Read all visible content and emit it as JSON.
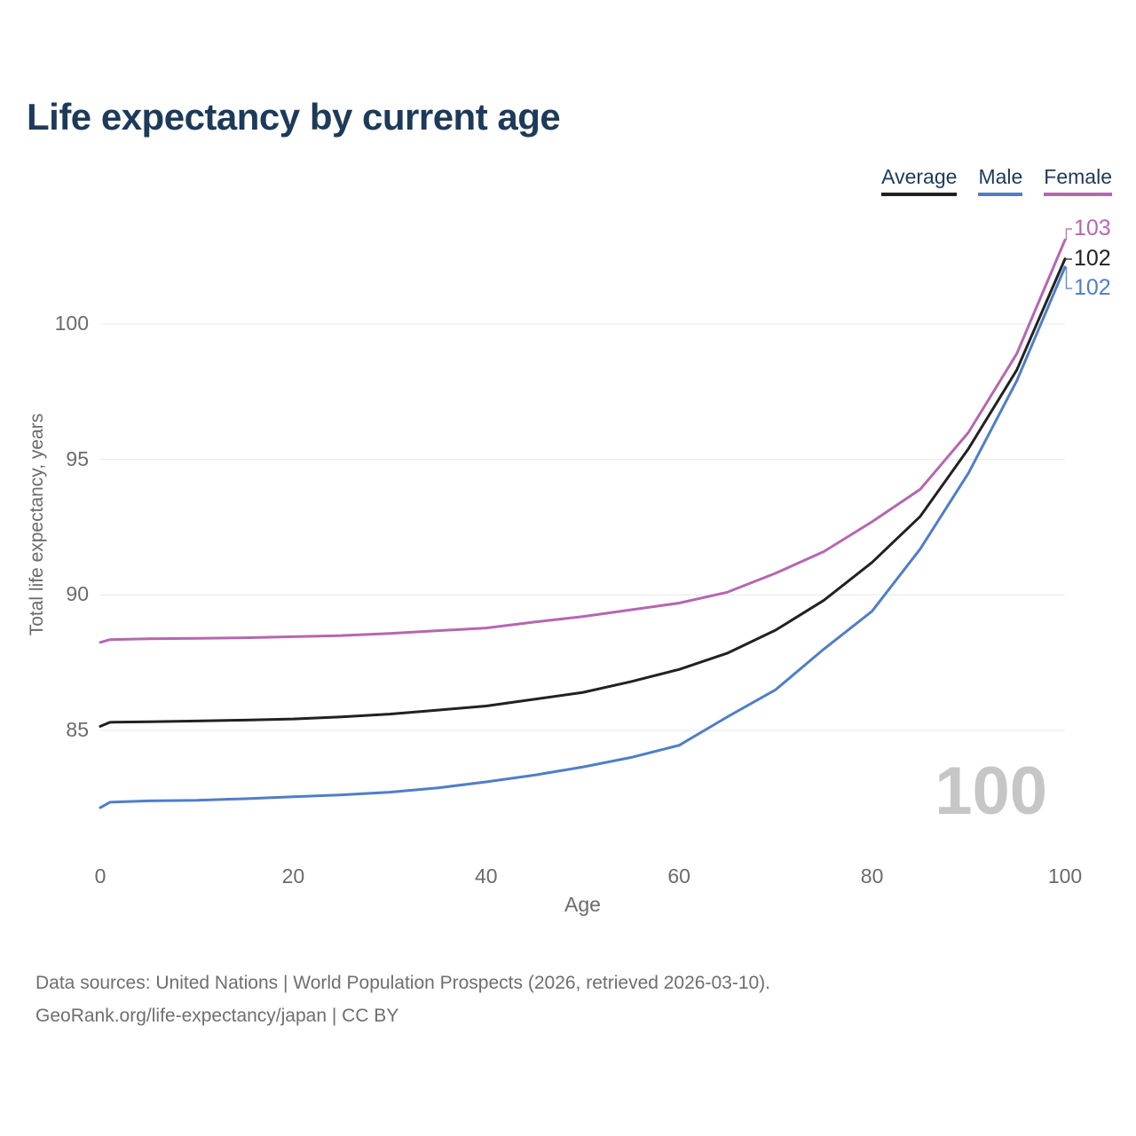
{
  "title": "Life expectancy by current age",
  "legend": {
    "items": [
      {
        "label": "Average",
        "color": "#212121"
      },
      {
        "label": "Male",
        "color": "#4f7ec8"
      },
      {
        "label": "Female",
        "color": "#b567b0"
      }
    ]
  },
  "axes": {
    "x_label": "Age",
    "y_label": "Total life expectancy, years",
    "x_ticks": [
      0,
      20,
      40,
      60,
      80,
      100
    ],
    "y_ticks": [
      85,
      90,
      95,
      100
    ]
  },
  "watermark": "100",
  "footer": {
    "sources_line": "Data sources: United Nations | World Population Prospects (2026, retrieved 2026-03-10).",
    "attribution_line": "GeoRank.org/life-expectancy/japan | CC BY"
  },
  "chart_data": {
    "type": "line",
    "title": "Life expectancy by current age",
    "xlabel": "Age",
    "ylabel": "Total life expectancy, years",
    "xlim": [
      0,
      100
    ],
    "ylim": [
      81.5,
      104.1
    ],
    "grid": true,
    "legend_position": "top-right",
    "x": [
      0,
      1,
      5,
      10,
      15,
      20,
      25,
      30,
      35,
      40,
      45,
      50,
      55,
      60,
      65,
      70,
      75,
      80,
      85,
      90,
      95,
      100
    ],
    "series": [
      {
        "name": "Average",
        "color": "#212121",
        "end_label": "102",
        "values": [
          85.15,
          85.3,
          85.32,
          85.35,
          85.38,
          85.42,
          85.5,
          85.6,
          85.75,
          85.9,
          86.15,
          86.4,
          86.8,
          87.25,
          87.85,
          88.7,
          89.8,
          91.2,
          92.9,
          95.4,
          98.3,
          102.4
        ]
      },
      {
        "name": "Male",
        "color": "#4f7ec8",
        "end_label": "102",
        "values": [
          82.15,
          82.35,
          82.4,
          82.42,
          82.48,
          82.55,
          82.62,
          82.72,
          82.88,
          83.1,
          83.35,
          83.65,
          84.0,
          84.45,
          85.5,
          86.5,
          88.0,
          89.4,
          91.7,
          94.5,
          97.9,
          102.1
        ]
      },
      {
        "name": "Female",
        "color": "#b567b0",
        "end_label": "103",
        "values": [
          88.25,
          88.35,
          88.38,
          88.4,
          88.42,
          88.46,
          88.5,
          88.58,
          88.68,
          88.78,
          89.0,
          89.2,
          89.45,
          89.7,
          90.1,
          90.8,
          91.6,
          92.7,
          93.9,
          96.0,
          98.9,
          103.1
        ]
      }
    ]
  }
}
